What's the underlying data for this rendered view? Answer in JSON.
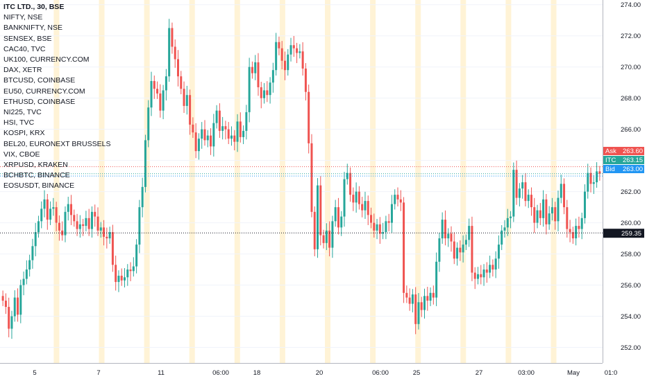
{
  "legend": {
    "title": "ITC LTD., 30, BSE",
    "symbols": [
      "NIFTY, NSE",
      "BANKNIFTY, NSE",
      "SENSEX, BSE",
      "CAC40, TVC",
      "UK100, CURRENCY.COM",
      "DAX, XETR",
      "BTCUSD, COINBASE",
      "EU50, CURRENCY.COM",
      "ETHUSD, COINBASE",
      "NI225, TVC",
      "HSI, TVC",
      "KOSPI, KRX",
      "BEL20, EURONEXT BRUSSELS",
      "VIX, CBOE",
      "XRPUSD, KRAKEN",
      "BCHBTC, BINANCE",
      "EOSUSDT, BINANCE"
    ]
  },
  "colors": {
    "up": "#26a69a",
    "down": "#ef5350",
    "session": "#fff3d6",
    "grid": "#f0f3fa",
    "ask": "#ef5350",
    "itc": "#26a69a",
    "bid": "#2196f3",
    "crosshair": "#131722"
  },
  "chart_data": {
    "type": "candlestick",
    "title": "ITC LTD., 30, BSE",
    "y_ticks": [
      252,
      254,
      256,
      258,
      260,
      262,
      264,
      266,
      268,
      270,
      272,
      274
    ],
    "ylim": [
      251.0,
      274.3
    ],
    "x_ticks": [
      "5",
      "7",
      "11",
      "06:00",
      "18",
      "20",
      "06:00",
      "25",
      "27",
      "03:00",
      "May",
      "01:0"
    ],
    "price_tags": [
      {
        "label": "Ask",
        "value": "263.60",
        "price": 263.6
      },
      {
        "label": "ITC",
        "value": "263.15",
        "price": 263.15
      },
      {
        "label": "Bid",
        "value": "263.00",
        "price": 263.0
      }
    ],
    "crosshair_price": {
      "value": "259.35",
      "price": 259.35
    },
    "closes": [
      255.0,
      254.6,
      253.2,
      254.0,
      255.2,
      254.1,
      256.0,
      256.4,
      257.0,
      257.6,
      258.5,
      259.4,
      260.1,
      260.9,
      261.5,
      260.2,
      260.9,
      261.0,
      260.0,
      259.5,
      259.2,
      260.7,
      261.2,
      260.5,
      260.1,
      259.6,
      259.9,
      259.8,
      260.3,
      259.6,
      260.7,
      260.4,
      259.5,
      259.7,
      259.1,
      259.0,
      259.4,
      257.3,
      256.2,
      256.6,
      256.3,
      256.5,
      257.0,
      256.9,
      257.2,
      258.6,
      261.0,
      262.3,
      265.3,
      267.4,
      269.1,
      268.6,
      268.3,
      267.2,
      268.5,
      269.4,
      272.5,
      271.3,
      270.5,
      269.4,
      268.6,
      267.5,
      268.2,
      266.3,
      265.8,
      264.6,
      265.4,
      266.0,
      265.3,
      265.6,
      264.9,
      266.4,
      267.2,
      265.9,
      266.2,
      266.0,
      265.4,
      265.6,
      265.2,
      266.5,
      265.5,
      265.9,
      267.1,
      270.0,
      269.6,
      270.3,
      268.7,
      268.0,
      268.5,
      268.2,
      269.0,
      269.8,
      271.6,
      271.2,
      270.4,
      269.8,
      270.8,
      271.4,
      271.2,
      270.9,
      271.0,
      269.9,
      268.4,
      265.1,
      260.7,
      258.3,
      262.4,
      259.2,
      258.7,
      259.5,
      258.4,
      260.1,
      261.0,
      259.7,
      260.4,
      262.8,
      263.2,
      261.8,
      261.3,
      262.0,
      261.2,
      260.8,
      261.4,
      260.5,
      260.0,
      259.5,
      259.9,
      259.3,
      259.4,
      260.1,
      260.0,
      261.2,
      261.8,
      261.5,
      261.3,
      255.5,
      255.2,
      254.8,
      255.4,
      253.5,
      254.9,
      254.4,
      255.3,
      255.0,
      255.5,
      255.2,
      257.5,
      259.0,
      260.2,
      259.0,
      259.3,
      258.8,
      257.7,
      258.4,
      258.1,
      258.6,
      258.9,
      259.8,
      256.8,
      256.4,
      256.7,
      256.5,
      257.0,
      256.8,
      257.3,
      257.0,
      257.7,
      258.6,
      259.5,
      259.7,
      260.3,
      260.4,
      263.4,
      261.6,
      262.2,
      262.6,
      261.4,
      261.8,
      261.0,
      260.0,
      260.8,
      260.3,
      261.5,
      259.9,
      260.6,
      261.0,
      260.1,
      261.6,
      262.5,
      261.0,
      259.6,
      259.4,
      259.0,
      259.8,
      259.6,
      260.3,
      262.0,
      263.2,
      262.5,
      262.6,
      263.3,
      263.15
    ],
    "session_bands": [
      0.6,
      1.5,
      2.4,
      3.3,
      4.2,
      5.1,
      6.0,
      6.9,
      7.8,
      8.7,
      9.6,
      10.5
    ]
  }
}
